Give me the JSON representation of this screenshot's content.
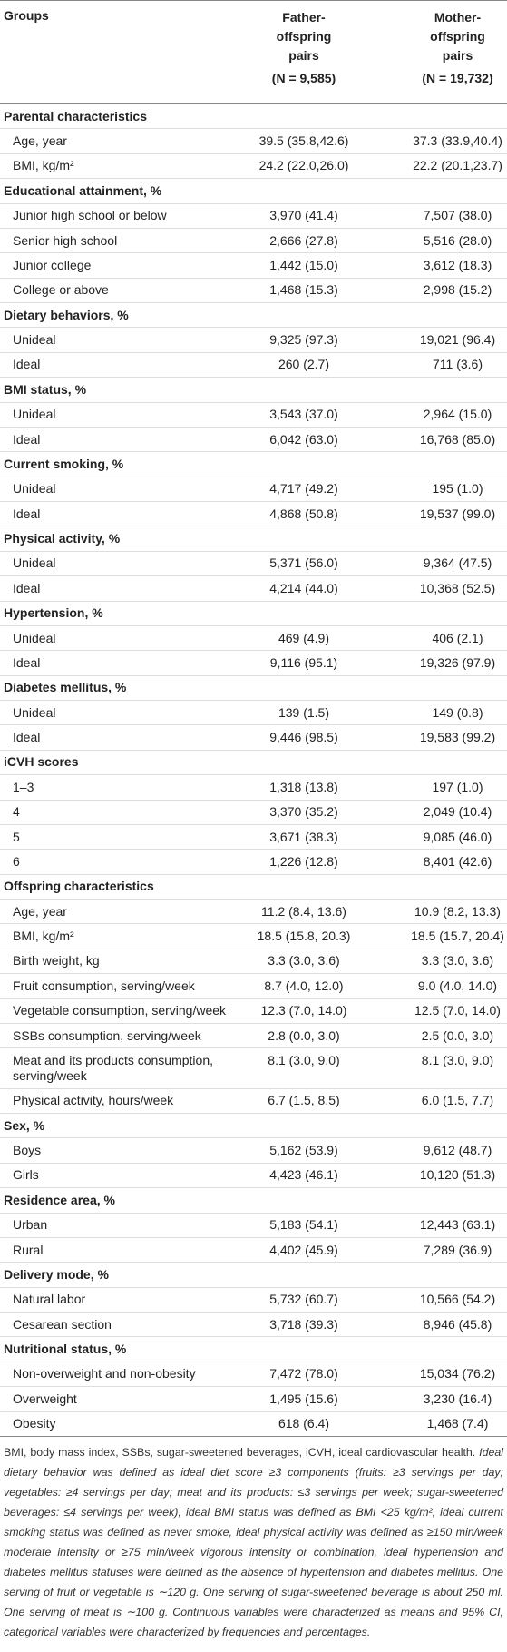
{
  "header": {
    "groups": "Groups",
    "columns": [
      {
        "title": "Father-offspring pairs",
        "n": "(N = 9,585)"
      },
      {
        "title": "Mother-offspring pairs",
        "n": "(N = 19,732)"
      }
    ]
  },
  "sections": [
    {
      "title": "Parental characteristics",
      "rows": [
        {
          "label": "Age, year",
          "values": [
            "39.5 (35.8,42.6)",
            "37.3 (33.9,40.4)"
          ]
        },
        {
          "label": "BMI, kg/m²",
          "values": [
            "24.2 (22.0,26.0)",
            "22.2 (20.1,23.7)"
          ]
        }
      ]
    },
    {
      "title": "Educational attainment, %",
      "rows": [
        {
          "label": "Junior high school or below",
          "values": [
            "3,970 (41.4)",
            "7,507 (38.0)"
          ]
        },
        {
          "label": "Senior high school",
          "values": [
            "2,666 (27.8)",
            "5,516 (28.0)"
          ]
        },
        {
          "label": "Junior college",
          "values": [
            "1,442 (15.0)",
            "3,612 (18.3)"
          ]
        },
        {
          "label": "College or above",
          "values": [
            "1,468 (15.3)",
            "2,998 (15.2)"
          ]
        }
      ]
    },
    {
      "title": "Dietary behaviors, %",
      "rows": [
        {
          "label": "Unideal",
          "values": [
            "9,325 (97.3)",
            "19,021 (96.4)"
          ]
        },
        {
          "label": "Ideal",
          "values": [
            "260 (2.7)",
            "711 (3.6)"
          ]
        }
      ]
    },
    {
      "title": "BMI status, %",
      "rows": [
        {
          "label": "Unideal",
          "values": [
            "3,543 (37.0)",
            "2,964 (15.0)"
          ]
        },
        {
          "label": "Ideal",
          "values": [
            "6,042 (63.0)",
            "16,768 (85.0)"
          ]
        }
      ]
    },
    {
      "title": "Current smoking, %",
      "rows": [
        {
          "label": "Unideal",
          "values": [
            "4,717 (49.2)",
            "195 (1.0)"
          ]
        },
        {
          "label": "Ideal",
          "values": [
            "4,868 (50.8)",
            "19,537 (99.0)"
          ]
        }
      ]
    },
    {
      "title": "Physical activity, %",
      "rows": [
        {
          "label": "Unideal",
          "values": [
            "5,371 (56.0)",
            "9,364 (47.5)"
          ]
        },
        {
          "label": "Ideal",
          "values": [
            "4,214 (44.0)",
            "10,368 (52.5)"
          ]
        }
      ]
    },
    {
      "title": "Hypertension, %",
      "rows": [
        {
          "label": "Unideal",
          "values": [
            "469 (4.9)",
            "406 (2.1)"
          ]
        },
        {
          "label": "Ideal",
          "values": [
            "9,116 (95.1)",
            "19,326 (97.9)"
          ]
        }
      ]
    },
    {
      "title": "Diabetes mellitus, %",
      "rows": [
        {
          "label": "Unideal",
          "values": [
            "139 (1.5)",
            "149 (0.8)"
          ]
        },
        {
          "label": "Ideal",
          "values": [
            "9,446 (98.5)",
            "19,583 (99.2)"
          ]
        }
      ]
    },
    {
      "title": "iCVH scores",
      "rows": [
        {
          "label": "1–3",
          "values": [
            "1,318 (13.8)",
            "197 (1.0)"
          ]
        },
        {
          "label": "4",
          "values": [
            "3,370 (35.2)",
            "2,049 (10.4)"
          ]
        },
        {
          "label": "5",
          "values": [
            "3,671 (38.3)",
            "9,085 (46.0)"
          ]
        },
        {
          "label": "6",
          "values": [
            "1,226 (12.8)",
            "8,401 (42.6)"
          ]
        }
      ]
    },
    {
      "title": "Offspring characteristics",
      "rows": [
        {
          "label": "Age, year",
          "values": [
            "11.2 (8.4, 13.6)",
            "10.9 (8.2, 13.3)"
          ]
        },
        {
          "label": "BMI, kg/m²",
          "values": [
            "18.5 (15.8, 20.3)",
            "18.5 (15.7, 20.4)"
          ]
        },
        {
          "label": "Birth weight, kg",
          "values": [
            "3.3 (3.0, 3.6)",
            "3.3 (3.0, 3.6)"
          ]
        },
        {
          "label": "Fruit consumption, serving/week",
          "values": [
            "8.7 (4.0, 12.0)",
            "9.0 (4.0, 14.0)"
          ]
        },
        {
          "label": "Vegetable consumption, serving/week",
          "values": [
            "12.3 (7.0, 14.0)",
            "12.5 (7.0, 14.0)"
          ]
        },
        {
          "label": "SSBs consumption, serving/week",
          "values": [
            "2.8 (0.0, 3.0)",
            "2.5 (0.0, 3.0)"
          ]
        },
        {
          "label": "Meat and its products consumption, serving/week",
          "values": [
            "8.1 (3.0, 9.0)",
            "8.1 (3.0, 9.0)"
          ]
        },
        {
          "label": "Physical activity, hours/week",
          "values": [
            "6.7 (1.5, 8.5)",
            "6.0 (1.5, 7.7)"
          ]
        }
      ]
    },
    {
      "title": "Sex, %",
      "rows": [
        {
          "label": "Boys",
          "values": [
            "5,162 (53.9)",
            "9,612 (48.7)"
          ]
        },
        {
          "label": "Girls",
          "values": [
            "4,423 (46.1)",
            "10,120 (51.3)"
          ]
        }
      ]
    },
    {
      "title": "Residence area, %",
      "rows": [
        {
          "label": "Urban",
          "values": [
            "5,183 (54.1)",
            "12,443 (63.1)"
          ]
        },
        {
          "label": "Rural",
          "values": [
            "4,402 (45.9)",
            "7,289 (36.9)"
          ]
        }
      ]
    },
    {
      "title": "Delivery mode, %",
      "rows": [
        {
          "label": "Natural labor",
          "values": [
            "5,732 (60.7)",
            "10,566 (54.2)"
          ]
        },
        {
          "label": "Cesarean section",
          "values": [
            "3,718 (39.3)",
            "8,946 (45.8)"
          ]
        }
      ]
    },
    {
      "title": "Nutritional status, %",
      "rows": [
        {
          "label": "Non-overweight and non-obesity",
          "values": [
            "7,472 (78.0)",
            "15,034 (76.2)"
          ]
        },
        {
          "label": "Overweight",
          "values": [
            "1,495 (15.6)",
            "3,230 (16.4)"
          ]
        },
        {
          "label": "Obesity",
          "values": [
            "618 (6.4)",
            "1,468 (7.4)"
          ]
        }
      ]
    }
  ],
  "footnote": {
    "abbreviations": "BMI, body mass index, SSBs, sugar-sweetened beverages, iCVH, ideal cardiovascular health.",
    "definitions": "Ideal dietary behavior was defined as ideal diet score ≥3 components (fruits: ≥3 servings per day; vegetables: ≥4 servings per day; meat and its products: ≤3 servings per week; sugar-sweetened beverages: ≤4 servings per week), ideal BMI status was defined as BMI <25 kg/m², ideal current smoking status was defined as never smoke, ideal physical activity was defined as ≥150 min/week moderate intensity or ≥75 min/week vigorous intensity or combination, ideal hypertension and diabetes mellitus statuses were defined as the absence of hypertension and diabetes mellitus. One serving of fruit or vegetable is ∼120 g. One serving of sugar-sweetened beverage is about 250 ml. One serving of meat is ∼100 g. Continuous variables were characterized as means and 95% CI, categorical variables were characterized by frequencies and percentages."
  }
}
